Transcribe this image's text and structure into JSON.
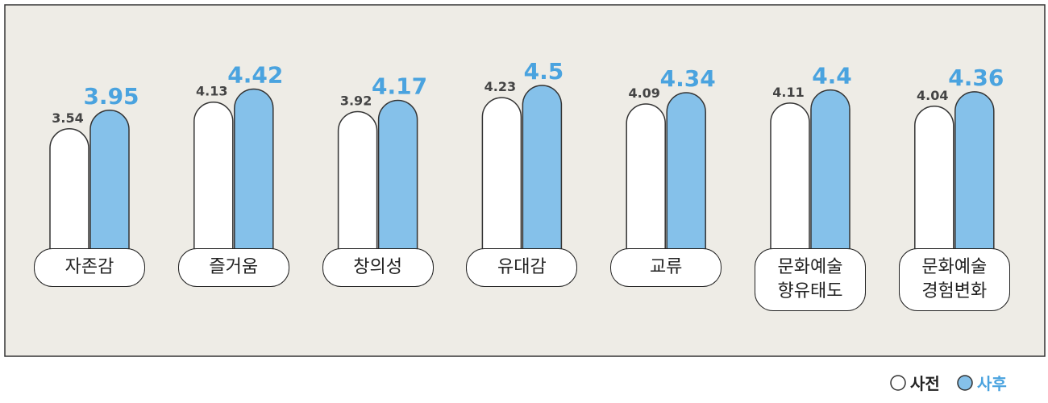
{
  "chart_data": {
    "type": "bar",
    "categories": [
      "자존감",
      "즐거움",
      "창의성",
      "유대감",
      "교류",
      "문화예술 향유태도",
      "문화예술 경험변화"
    ],
    "series": [
      {
        "name": "사전",
        "color": "#ffffff",
        "values": [
          3.54,
          4.13,
          3.92,
          4.23,
          4.09,
          4.11,
          4.04
        ]
      },
      {
        "name": "사후",
        "color": "#85c1ea",
        "values": [
          3.95,
          4.42,
          4.17,
          4.5,
          4.34,
          4.4,
          4.36
        ]
      }
    ]
  }
}
